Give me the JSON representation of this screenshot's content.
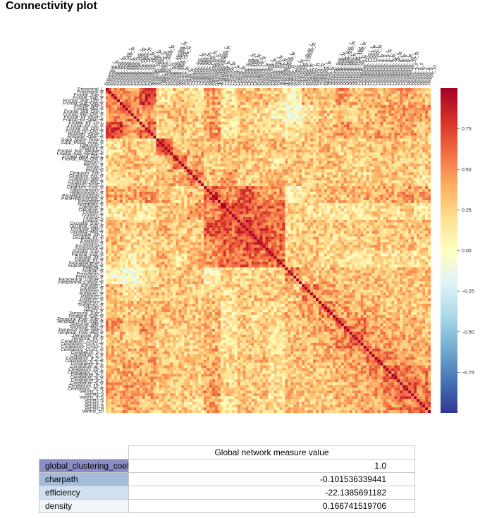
{
  "page": {
    "title": "Connectivity plot"
  },
  "chart_data": {
    "type": "heatmap",
    "title": "",
    "n_regions": 116,
    "colormap": "RdYlBu_r",
    "value_range": [
      -1.0,
      1.0
    ],
    "colorbar_ticks": [
      0.75,
      0.5,
      0.25,
      0.0,
      -0.25,
      -0.5,
      -0.75
    ],
    "colorbar_tick_labels": [
      "0.75",
      "0.50",
      "0.25",
      "0.00",
      "−0.25",
      "−0.50",
      "−0.75"
    ],
    "row_labels": [
      "Precentral_L",
      "Precentral_R",
      "Frontal_Sup_L",
      "Frontal_Sup_R",
      "Frontal_Sup_Orb_L",
      "Frontal_Sup_Orb_R",
      "Frontal_Mid_L",
      "Frontal_Mid_R",
      "Frontal_Mid_Orb_L",
      "Frontal_Mid_Orb_R",
      "Frontal_Inf_Oper_L",
      "Frontal_Inf_Oper_R",
      "Frontal_Inf_Tri_L",
      "Frontal_Inf_Tri_R",
      "Frontal_Inf_Orb_L",
      "Frontal_Inf_Orb_R",
      "Rolandic_Oper_L",
      "Rolandic_Oper_R",
      "Supp_Motor_Area_L",
      "Supp_Motor_Area_R",
      "Olfactory_L",
      "Olfactory_R",
      "Frontal_Sup_Medial_L",
      "Frontal_Sup_Medial_R",
      "Frontal_Med_Orb_L",
      "Frontal_Med_Orb_R",
      "Rectus_L",
      "Rectus_R",
      "Insula_L",
      "Insula_R",
      "Cingulum_Ant_L",
      "Cingulum_Ant_R",
      "Cingulum_Mid_L",
      "Cingulum_Mid_R",
      "Cingulum_Post_L",
      "Cingulum_Post_R",
      "Hippocampus_L",
      "Hippocampus_R",
      "ParaHippocampal_L",
      "ParaHippocampal_R",
      "Amygdala_L",
      "Amygdala_R",
      "Calcarine_L",
      "Calcarine_R",
      "Cuneus_L",
      "Cuneus_R",
      "Lingual_L",
      "Lingual_R",
      "Occipital_Sup_L",
      "Occipital_Sup_R",
      "Occipital_Mid_L",
      "Occipital_Mid_R",
      "Occipital_Inf_L",
      "Occipital_Inf_R",
      "Fusiform_L",
      "Fusiform_R",
      "Postcentral_L",
      "Postcentral_R",
      "Parietal_Sup_L",
      "Parietal_Sup_R",
      "Parietal_Inf_L",
      "Parietal_Inf_R",
      "SupraMarginal_L",
      "SupraMarginal_R",
      "Angular_L",
      "Angular_R",
      "Precuneus_L",
      "Precuneus_R",
      "Paracentral_Lobule_L",
      "Paracentral_Lobule_R",
      "Caudate_L",
      "Caudate_R",
      "Putamen_L",
      "Putamen_R",
      "Pallidum_L",
      "Pallidum_R",
      "Thalamus_L",
      "Thalamus_R",
      "Heschl_L",
      "Heschl_R",
      "Temporal_Sup_L",
      "Temporal_Sup_R",
      "Temporal_Pole_Sup_L",
      "Temporal_Pole_Sup_R",
      "Temporal_Mid_L",
      "Temporal_Mid_R",
      "Temporal_Pole_Mid_L",
      "Temporal_Pole_Mid_R",
      "Temporal_Inf_L",
      "Temporal_Inf_R",
      "Cerebelum_Crus1_L",
      "Cerebelum_Crus1_R",
      "Cerebelum_Crus2_L",
      "Cerebelum_Crus2_R",
      "Cerebelum_3_L",
      "Cerebelum_3_R",
      "Cerebelum_4_5_L",
      "Cerebelum_4_5_R",
      "Cerebelum_6_L",
      "Cerebelum_6_R",
      "Cerebelum_7b_L",
      "Cerebelum_7b_R",
      "Cerebelum_8_L",
      "Cerebelum_8_R",
      "Cerebelum_9_L",
      "Cerebelum_9_R",
      "Cerebelum_10_L",
      "Cerebelum_10_R",
      "Vermis_1_2",
      "Vermis_3",
      "Vermis_4_5",
      "Vermis_6",
      "Vermis_7",
      "Vermis_8",
      "Vermis_9",
      "Vermis_10"
    ],
    "block_values": [
      [
        0.55,
        0.45,
        0.75,
        0.15,
        0.3,
        0.2,
        0.4,
        0.15,
        0.3,
        0.35,
        0.25,
        0.05,
        0.35,
        0.3,
        0.45,
        0.35,
        0.35,
        0.35,
        0.4,
        0.3
      ],
      [
        0.45,
        0.6,
        0.45,
        0.3,
        0.35,
        0.3,
        0.4,
        0.2,
        0.3,
        0.2,
        0.1,
        0.0,
        0.1,
        0.3,
        0.3,
        0.3,
        0.35,
        0.4,
        0.45,
        0.45
      ],
      [
        0.75,
        0.45,
        0.6,
        0.2,
        0.3,
        0.25,
        0.45,
        0.15,
        0.3,
        0.25,
        0.2,
        0.15,
        0.3,
        0.35,
        0.45,
        0.35,
        0.4,
        0.4,
        0.4,
        0.3
      ],
      [
        0.15,
        0.3,
        0.2,
        0.7,
        0.3,
        0.4,
        0.35,
        0.3,
        0.35,
        0.25,
        0.35,
        0.3,
        0.3,
        0.35,
        0.25,
        0.25,
        0.3,
        0.35,
        0.3,
        0.25
      ],
      [
        0.3,
        0.35,
        0.3,
        0.3,
        0.6,
        0.35,
        0.25,
        0.3,
        0.25,
        0.3,
        0.2,
        0.3,
        0.3,
        0.35,
        0.3,
        0.25,
        0.3,
        0.3,
        0.3,
        0.25
      ],
      [
        0.2,
        0.3,
        0.25,
        0.4,
        0.35,
        0.55,
        0.35,
        0.45,
        0.3,
        0.3,
        0.35,
        0.3,
        0.3,
        0.3,
        0.3,
        0.25,
        0.25,
        0.3,
        0.3,
        0.2
      ],
      [
        0.4,
        0.4,
        0.45,
        0.35,
        0.25,
        0.35,
        0.7,
        0.5,
        0.65,
        0.45,
        0.45,
        0.05,
        0.25,
        0.35,
        0.35,
        0.35,
        0.4,
        0.4,
        0.45,
        0.4
      ],
      [
        0.15,
        0.2,
        0.15,
        0.3,
        0.3,
        0.45,
        0.5,
        0.75,
        0.65,
        0.65,
        0.6,
        0.25,
        0.2,
        0.1,
        0.15,
        0.15,
        0.2,
        0.2,
        0.25,
        0.15
      ],
      [
        0.3,
        0.3,
        0.3,
        0.35,
        0.25,
        0.3,
        0.65,
        0.65,
        0.8,
        0.7,
        0.6,
        0.2,
        0.3,
        0.25,
        0.3,
        0.3,
        0.3,
        0.3,
        0.3,
        0.3
      ],
      [
        0.35,
        0.2,
        0.25,
        0.25,
        0.3,
        0.3,
        0.45,
        0.65,
        0.7,
        0.7,
        0.6,
        0.25,
        0.3,
        0.2,
        0.25,
        0.25,
        0.3,
        0.25,
        0.3,
        0.25
      ],
      [
        0.25,
        0.1,
        0.2,
        0.35,
        0.2,
        0.35,
        0.45,
        0.6,
        0.6,
        0.6,
        0.6,
        0.3,
        0.3,
        0.2,
        0.2,
        0.2,
        0.2,
        0.15,
        0.2,
        0.2
      ],
      [
        0.05,
        0.0,
        0.15,
        0.3,
        0.3,
        0.3,
        0.05,
        0.25,
        0.2,
        0.25,
        0.3,
        0.55,
        0.3,
        0.35,
        0.3,
        0.3,
        0.3,
        0.3,
        0.3,
        0.3
      ],
      [
        0.35,
        0.1,
        0.3,
        0.3,
        0.3,
        0.3,
        0.25,
        0.2,
        0.3,
        0.3,
        0.3,
        0.3,
        0.5,
        0.4,
        0.4,
        0.35,
        0.35,
        0.3,
        0.3,
        0.3
      ],
      [
        0.3,
        0.3,
        0.35,
        0.35,
        0.35,
        0.3,
        0.35,
        0.1,
        0.25,
        0.2,
        0.2,
        0.35,
        0.4,
        0.5,
        0.45,
        0.4,
        0.35,
        0.3,
        0.3,
        0.3
      ],
      [
        0.45,
        0.3,
        0.45,
        0.25,
        0.3,
        0.3,
        0.35,
        0.15,
        0.3,
        0.25,
        0.2,
        0.3,
        0.4,
        0.45,
        0.55,
        0.5,
        0.4,
        0.35,
        0.35,
        0.3
      ],
      [
        0.35,
        0.3,
        0.35,
        0.25,
        0.25,
        0.25,
        0.35,
        0.15,
        0.3,
        0.25,
        0.2,
        0.3,
        0.35,
        0.4,
        0.5,
        0.6,
        0.45,
        0.4,
        0.4,
        0.35
      ],
      [
        0.35,
        0.35,
        0.4,
        0.3,
        0.3,
        0.25,
        0.4,
        0.2,
        0.3,
        0.3,
        0.2,
        0.3,
        0.35,
        0.35,
        0.4,
        0.45,
        0.6,
        0.5,
        0.45,
        0.4
      ],
      [
        0.35,
        0.4,
        0.4,
        0.35,
        0.3,
        0.3,
        0.4,
        0.2,
        0.3,
        0.25,
        0.15,
        0.3,
        0.3,
        0.3,
        0.35,
        0.4,
        0.5,
        0.6,
        0.55,
        0.5
      ],
      [
        0.4,
        0.45,
        0.4,
        0.3,
        0.3,
        0.3,
        0.45,
        0.25,
        0.3,
        0.3,
        0.2,
        0.3,
        0.3,
        0.3,
        0.35,
        0.4,
        0.45,
        0.55,
        0.65,
        0.55
      ],
      [
        0.3,
        0.45,
        0.3,
        0.25,
        0.25,
        0.2,
        0.4,
        0.15,
        0.3,
        0.25,
        0.2,
        0.3,
        0.3,
        0.3,
        0.3,
        0.35,
        0.4,
        0.5,
        0.55,
        0.6
      ]
    ]
  },
  "table": {
    "column_header": "Global network measure value",
    "rows": [
      {
        "name": "global_clustering_coefficient",
        "value": "1.0",
        "color": "#8c8cc6"
      },
      {
        "name": "charpath",
        "value": "-0.101536339441",
        "color": "#a3bcd9"
      },
      {
        "name": "efficiency",
        "value": "-22.1385691182",
        "color": "#d2e1ef"
      },
      {
        "name": "density",
        "value": "0.166741519706",
        "color": "#f2f6fa"
      }
    ]
  }
}
